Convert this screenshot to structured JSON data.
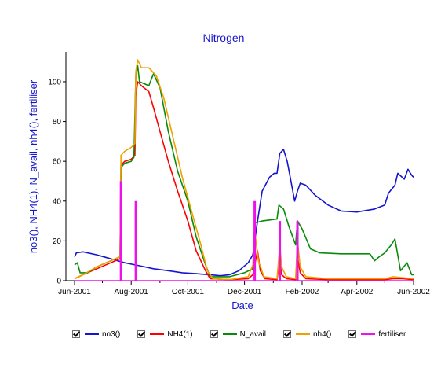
{
  "chart_data": {
    "type": "line",
    "title": "Nitrogen",
    "xlabel": "Date",
    "ylabel": "no3(), NH4(1), N_avail, nh4(), fertiliser",
    "xlim": [
      "2001-06-01",
      "2002-06-01"
    ],
    "ylim": [
      0,
      115
    ],
    "x_ticks": [
      "Jun-2001",
      "Aug-2001",
      "Oct-2001",
      "Dec-2001",
      "Feb-2002",
      "Apr-2002",
      "Jun-2002"
    ],
    "y_ticks": [
      0,
      20,
      40,
      60,
      80,
      100
    ],
    "grid": false,
    "legend_position": "bottom",
    "series": [
      {
        "name": "no3()",
        "color": "#1515d0",
        "kind": "line",
        "points": [
          [
            "2001-06-01",
            12
          ],
          [
            "2001-06-03",
            14
          ],
          [
            "2001-06-10",
            14.5
          ],
          [
            "2001-06-25",
            13
          ],
          [
            "2001-07-10",
            11
          ],
          [
            "2001-07-25",
            9
          ],
          [
            "2001-08-10",
            7.5
          ],
          [
            "2001-08-25",
            6
          ],
          [
            "2001-09-10",
            5
          ],
          [
            "2001-09-25",
            4
          ],
          [
            "2001-10-10",
            3.5
          ],
          [
            "2001-10-25",
            3
          ],
          [
            "2001-11-05",
            2.5
          ],
          [
            "2001-11-15",
            3
          ],
          [
            "2001-11-25",
            5
          ],
          [
            "2001-12-05",
            9
          ],
          [
            "2001-12-10",
            13
          ],
          [
            "2001-12-15",
            30
          ],
          [
            "2001-12-20",
            45
          ],
          [
            "2001-12-28",
            52
          ],
          [
            "2002-01-02",
            54
          ],
          [
            "2002-01-05",
            54
          ],
          [
            "2002-01-08",
            64
          ],
          [
            "2002-01-12",
            66
          ],
          [
            "2002-01-16",
            60
          ],
          [
            "2002-01-20",
            50
          ],
          [
            "2002-01-24",
            40
          ],
          [
            "2002-01-27",
            45
          ],
          [
            "2002-01-30",
            49
          ],
          [
            "2002-02-05",
            48
          ],
          [
            "2002-02-15",
            43
          ],
          [
            "2002-03-01",
            38
          ],
          [
            "2002-03-15",
            35
          ],
          [
            "2002-04-01",
            34.5
          ],
          [
            "2002-04-20",
            36
          ],
          [
            "2002-05-01",
            38
          ],
          [
            "2002-05-05",
            44
          ],
          [
            "2002-05-12",
            48
          ],
          [
            "2002-05-15",
            54
          ],
          [
            "2002-05-22",
            51
          ],
          [
            "2002-05-26",
            56
          ],
          [
            "2002-05-30",
            53
          ],
          [
            "2002-06-01",
            52
          ]
        ]
      },
      {
        "name": "NH4(1)",
        "color": "#ff0000",
        "kind": "line",
        "points": [
          [
            "2001-06-01",
            1
          ],
          [
            "2001-06-10",
            3
          ],
          [
            "2001-06-25",
            6
          ],
          [
            "2001-07-10",
            9
          ],
          [
            "2001-07-20",
            11
          ],
          [
            "2001-07-21",
            58
          ],
          [
            "2001-07-25",
            60
          ],
          [
            "2001-08-01",
            61
          ],
          [
            "2001-08-05",
            63
          ],
          [
            "2001-08-06",
            93
          ],
          [
            "2001-08-08",
            100
          ],
          [
            "2001-08-12",
            98
          ],
          [
            "2001-08-20",
            95
          ],
          [
            "2001-08-25",
            87
          ],
          [
            "2001-09-01",
            75
          ],
          [
            "2001-09-10",
            60
          ],
          [
            "2001-09-20",
            45
          ],
          [
            "2001-10-01",
            30
          ],
          [
            "2001-10-10",
            15
          ],
          [
            "2001-10-20",
            5
          ],
          [
            "2001-10-25",
            1
          ],
          [
            "2001-11-15",
            0.5
          ],
          [
            "2001-12-05",
            1
          ],
          [
            "2001-12-10",
            3
          ],
          [
            "2001-12-15",
            15
          ],
          [
            "2001-12-18",
            5
          ],
          [
            "2001-12-23",
            1
          ],
          [
            "2002-01-05",
            0.5
          ],
          [
            "2002-01-08",
            10
          ],
          [
            "2002-01-10",
            3
          ],
          [
            "2002-01-15",
            1
          ],
          [
            "2002-01-25",
            0.5
          ],
          [
            "2002-01-27",
            12
          ],
          [
            "2002-01-30",
            4
          ],
          [
            "2002-02-05",
            1
          ],
          [
            "2002-03-01",
            0.5
          ],
          [
            "2002-05-01",
            0.5
          ],
          [
            "2002-05-10",
            1
          ],
          [
            "2002-05-20",
            1
          ],
          [
            "2002-06-01",
            0.5
          ]
        ]
      },
      {
        "name": "N_avail",
        "color": "#0a8a0a",
        "kind": "line",
        "points": [
          [
            "2001-06-01",
            8
          ],
          [
            "2001-06-04",
            9
          ],
          [
            "2001-06-07",
            4
          ],
          [
            "2001-06-15",
            4
          ],
          [
            "2001-06-25",
            7
          ],
          [
            "2001-07-10",
            10
          ],
          [
            "2001-07-20",
            12
          ],
          [
            "2001-07-21",
            57
          ],
          [
            "2001-07-25",
            59
          ],
          [
            "2001-08-01",
            60
          ],
          [
            "2001-08-04",
            62
          ],
          [
            "2001-08-06",
            103
          ],
          [
            "2001-08-08",
            108
          ],
          [
            "2001-08-10",
            100
          ],
          [
            "2001-08-20",
            98
          ],
          [
            "2001-08-25",
            104
          ],
          [
            "2001-09-01",
            97
          ],
          [
            "2001-09-10",
            75
          ],
          [
            "2001-09-20",
            55
          ],
          [
            "2001-10-01",
            40
          ],
          [
            "2001-10-10",
            22
          ],
          [
            "2001-10-20",
            8
          ],
          [
            "2001-10-25",
            2
          ],
          [
            "2001-11-15",
            2
          ],
          [
            "2001-12-01",
            4
          ],
          [
            "2001-12-10",
            6
          ],
          [
            "2001-12-12",
            29
          ],
          [
            "2001-12-20",
            30
          ],
          [
            "2002-01-05",
            31
          ],
          [
            "2002-01-07",
            38
          ],
          [
            "2002-01-12",
            36
          ],
          [
            "2002-01-18",
            27
          ],
          [
            "2002-01-25",
            18
          ],
          [
            "2002-01-27",
            30
          ],
          [
            "2002-02-01",
            26
          ],
          [
            "2002-02-10",
            16
          ],
          [
            "2002-02-20",
            14
          ],
          [
            "2002-03-15",
            13.5
          ],
          [
            "2002-04-15",
            13.5
          ],
          [
            "2002-04-20",
            10
          ],
          [
            "2002-04-25",
            12
          ],
          [
            "2002-05-01",
            14
          ],
          [
            "2002-05-08",
            18
          ],
          [
            "2002-05-12",
            21
          ],
          [
            "2002-05-18",
            5
          ],
          [
            "2002-05-25",
            9
          ],
          [
            "2002-05-30",
            3
          ],
          [
            "2002-06-01",
            3
          ]
        ]
      },
      {
        "name": "nh4()",
        "color": "#f0a000",
        "kind": "line",
        "points": [
          [
            "2001-06-01",
            1
          ],
          [
            "2001-06-10",
            3
          ],
          [
            "2001-06-25",
            7
          ],
          [
            "2001-07-10",
            10
          ],
          [
            "2001-07-20",
            12
          ],
          [
            "2001-07-21",
            63
          ],
          [
            "2001-07-25",
            65
          ],
          [
            "2001-08-01",
            67
          ],
          [
            "2001-08-05",
            69
          ],
          [
            "2001-08-06",
            105
          ],
          [
            "2001-08-08",
            111
          ],
          [
            "2001-08-12",
            107
          ],
          [
            "2001-08-20",
            107
          ],
          [
            "2001-08-28",
            103
          ],
          [
            "2001-09-05",
            92
          ],
          [
            "2001-09-15",
            72
          ],
          [
            "2001-09-25",
            52
          ],
          [
            "2001-10-05",
            35
          ],
          [
            "2001-10-15",
            18
          ],
          [
            "2001-10-22",
            5
          ],
          [
            "2001-10-28",
            1
          ],
          [
            "2001-11-15",
            0.5
          ],
          [
            "2001-12-05",
            2
          ],
          [
            "2001-12-10",
            8
          ],
          [
            "2001-12-12",
            25
          ],
          [
            "2001-12-16",
            10
          ],
          [
            "2001-12-22",
            2
          ],
          [
            "2002-01-05",
            1
          ],
          [
            "2002-01-08",
            18
          ],
          [
            "2002-01-10",
            7
          ],
          [
            "2002-01-15",
            2
          ],
          [
            "2002-01-25",
            1
          ],
          [
            "2002-01-27",
            20
          ],
          [
            "2002-01-30",
            7
          ],
          [
            "2002-02-05",
            2
          ],
          [
            "2002-03-01",
            1
          ],
          [
            "2002-05-01",
            1
          ],
          [
            "2002-05-10",
            2
          ],
          [
            "2002-05-20",
            1.5
          ],
          [
            "2002-06-01",
            1
          ]
        ]
      },
      {
        "name": "fertiliser",
        "color": "#ee11ee",
        "kind": "impulse",
        "baseline": [
          [
            "2001-06-01",
            0
          ],
          [
            "2002-06-01",
            0
          ]
        ],
        "points": [
          [
            "2001-07-21",
            50
          ],
          [
            "2001-08-06",
            40
          ],
          [
            "2001-12-12",
            40
          ],
          [
            "2002-01-08",
            30
          ],
          [
            "2002-01-27",
            30
          ]
        ]
      }
    ]
  },
  "legend": {
    "items": [
      {
        "label": "no3()",
        "color": "#1515d0"
      },
      {
        "label": "NH4(1)",
        "color": "#ff0000"
      },
      {
        "label": "N_avail",
        "color": "#0a8a0a"
      },
      {
        "label": "nh4()",
        "color": "#f0a000"
      },
      {
        "label": "fertiliser",
        "color": "#ee11ee"
      }
    ]
  },
  "colors": {
    "title": "#1515d0",
    "axis_title": "#1515d0",
    "axis": "#000000"
  }
}
